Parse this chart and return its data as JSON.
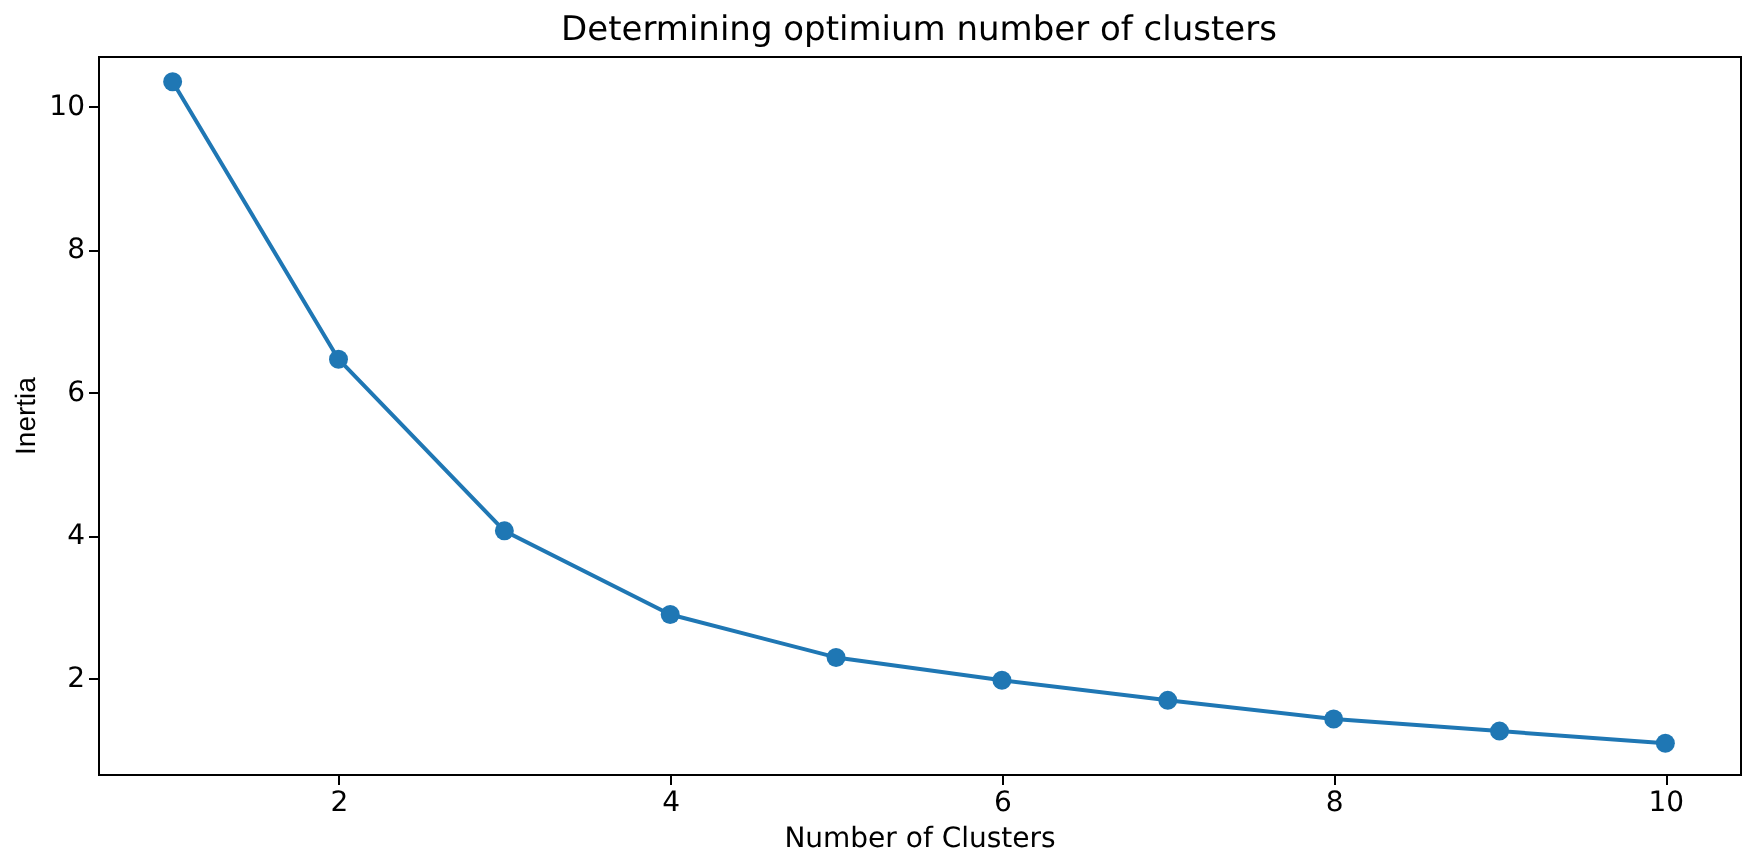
{
  "chart_data": {
    "type": "line",
    "title": "Determining optimium number of clusters",
    "xlabel": "Number of Clusters",
    "ylabel": "Inertia",
    "x": [
      1,
      2,
      3,
      4,
      5,
      6,
      7,
      8,
      9,
      10
    ],
    "series": [
      {
        "color": "#1f77b4",
        "values": [
          10.34,
          6.46,
          4.06,
          2.89,
          2.29,
          1.97,
          1.69,
          1.43,
          1.26,
          1.09
        ]
      }
    ],
    "xlim": [
      0.55,
      10.45
    ],
    "xticks": [
      2,
      4,
      6,
      8,
      10
    ],
    "ylim": [
      0.66,
      10.7
    ],
    "yticks": [
      2,
      4,
      6,
      8,
      10
    ],
    "grid": false,
    "marker": "circle",
    "line_style": "solid"
  }
}
